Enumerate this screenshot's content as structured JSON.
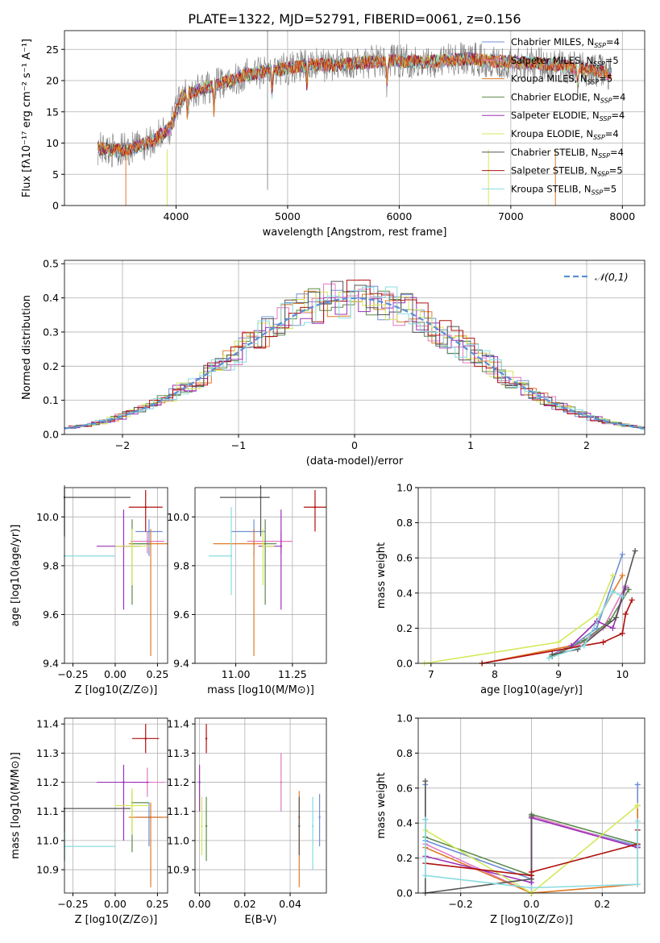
{
  "title": "PLATE=1322, MJD=52791, FIBERID=0061, z=0.156",
  "colors": {
    "chabrier_miles": "#6f8fd8",
    "salpeter_miles": "#e377c2",
    "kroupa_miles": "#e07b28",
    "chabrier_elodie": "#5a8a4a",
    "salpeter_elodie": "#9b32b8",
    "kroupa_elodie": "#d4e85a",
    "chabrier_stelib": "#555555",
    "salpeter_stelib": "#b01010",
    "kroupa_stelib": "#88dbe0",
    "gauss": "#5b8fd6"
  },
  "chart_data": [
    {
      "id": "spectrum",
      "type": "line",
      "xlabel": "wavelength [Angstrom, rest frame]",
      "ylabel": "Flux [fλ10⁻¹⁷ erg cm⁻² s⁻¹ A⁻¹]",
      "xlim": [
        3000,
        8200
      ],
      "ylim": [
        0,
        28
      ],
      "xticks": [
        4000,
        5000,
        6000,
        7000,
        8000
      ],
      "yticks": [
        0,
        5,
        10,
        15,
        20,
        25
      ],
      "continuum": {
        "x": [
          3300,
          3450,
          3600,
          3800,
          3950,
          4050,
          4200,
          4400,
          4600,
          4800,
          5000,
          5200,
          5400,
          5600,
          5800,
          6000,
          6200,
          6400,
          6600,
          6800,
          7000,
          7200,
          7400,
          7600,
          7800,
          7900
        ],
        "y": [
          9.2,
          8.8,
          9.0,
          10.5,
          12.5,
          17.5,
          18.5,
          19.5,
          20.8,
          21.5,
          22.0,
          22.5,
          22.5,
          22.8,
          23.0,
          23.2,
          23.0,
          23.2,
          23.5,
          23.2,
          23.0,
          22.8,
          22.5,
          22.0,
          21.5,
          21.0
        ]
      },
      "dips": [
        {
          "x": 4103,
          "d": 4
        },
        {
          "x": 4340,
          "d": 4
        },
        {
          "x": 4861,
          "d": 4
        },
        {
          "x": 5175,
          "d": 4
        },
        {
          "x": 5890,
          "d": 4
        },
        {
          "x": 7600,
          "d": 3
        }
      ],
      "legend": [
        {
          "label": "Chabrier MILES, N",
          "sub": "SSP",
          "suffix": "=4",
          "key": "chabrier_miles"
        },
        {
          "label": "Salpeter MILES, N",
          "sub": "SSP",
          "suffix": "=5",
          "key": "salpeter_miles"
        },
        {
          "label": "Kroupa MILES, N",
          "sub": "SSP",
          "suffix": "=5",
          "key": "kroupa_miles"
        },
        {
          "label": "Chabrier ELODIE, N",
          "sub": "SSP",
          "suffix": "=4",
          "key": "chabrier_elodie"
        },
        {
          "label": "Salpeter ELODIE, N",
          "sub": "SSP",
          "suffix": "=4",
          "key": "salpeter_elodie"
        },
        {
          "label": "Kroupa ELODIE, N",
          "sub": "SSP",
          "suffix": "=4",
          "key": "kroupa_elodie"
        },
        {
          "label": "Chabrier STELIB, N",
          "sub": "SSP",
          "suffix": "=4",
          "key": "chabrier_stelib"
        },
        {
          "label": "Salpeter STELIB, N",
          "sub": "SSP",
          "suffix": "=5",
          "key": "salpeter_stelib"
        },
        {
          "label": "Kroupa STELIB, N",
          "sub": "SSP",
          "suffix": "=5",
          "key": "kroupa_stelib"
        }
      ],
      "legend_loc": "right"
    },
    {
      "id": "residuals",
      "type": "histogram",
      "xlabel": "(data-model)/error",
      "ylabel": "Normed distribution",
      "xlim": [
        -2.5,
        2.5
      ],
      "ylim": [
        0,
        0.51
      ],
      "xticks": [
        -2,
        -1,
        0,
        1,
        2
      ],
      "yticks": [
        0.0,
        0.1,
        0.2,
        0.3,
        0.4,
        0.5
      ],
      "legend": {
        "label": "𝒩(0,1)",
        "loc": "top-right"
      }
    },
    {
      "id": "age_vs_Z",
      "type": "scatter",
      "xlabel": "Z [log10(Z/Z⊙)]",
      "ylabel": "age  [log10(age/yr)]",
      "xlim": [
        -0.3,
        0.31
      ],
      "ylim": [
        9.4,
        10.12
      ],
      "xticks": [
        -0.25,
        0.0,
        0.25
      ],
      "yticks": [
        9.4,
        9.6,
        9.8,
        10.0
      ],
      "points": [
        {
          "key": "chabrier_miles",
          "x": 0.2,
          "y": 9.94,
          "xerr": [
            0.08,
            0.08
          ],
          "yerr": [
            0.1,
            0.05
          ]
        },
        {
          "key": "salpeter_miles",
          "x": 0.19,
          "y": 9.9,
          "xerr": [
            0.1,
            0.1
          ],
          "yerr": [
            0.05,
            0.04
          ]
        },
        {
          "key": "kroupa_miles",
          "x": 0.21,
          "y": 9.89,
          "xerr": [
            0.13,
            0.1
          ],
          "yerr": [
            0.46,
            0.06
          ]
        },
        {
          "key": "chabrier_elodie",
          "x": 0.1,
          "y": 9.89,
          "xerr": [
            0.0,
            0.1
          ],
          "yerr": [
            0.25,
            0.1
          ]
        },
        {
          "key": "salpeter_elodie",
          "x": 0.05,
          "y": 9.88,
          "xerr": [
            0.16,
            0.1
          ],
          "yerr": [
            0.26,
            0.15
          ]
        },
        {
          "key": "kroupa_elodie",
          "x": 0.1,
          "y": 9.88,
          "xerr": [
            0.1,
            0.1
          ],
          "yerr": [
            0.16,
            0.07
          ]
        },
        {
          "key": "chabrier_stelib",
          "x": -0.3,
          "y": 10.08,
          "xerr": [
            0.0,
            0.39
          ],
          "yerr": [
            0.16,
            0.05
          ]
        },
        {
          "key": "salpeter_stelib",
          "x": 0.18,
          "y": 10.04,
          "xerr": [
            0.1,
            0.1
          ],
          "yerr": [
            0.1,
            0.07
          ]
        },
        {
          "key": "kroupa_stelib",
          "x": -0.3,
          "y": 9.84,
          "xerr": [
            0.0,
            0.3
          ],
          "yerr": [
            0.0,
            0.0
          ]
        }
      ]
    },
    {
      "id": "age_vs_mass",
      "type": "scatter",
      "xlabel": "mass [log10(M/M⊙)]",
      "ylabel": "",
      "xlim": [
        10.82,
        11.4
      ],
      "ylim": [
        9.4,
        10.12
      ],
      "xticks": [
        11.0,
        11.25
      ],
      "yticks": [
        9.4,
        9.6,
        9.8,
        10.0
      ],
      "points": [
        {
          "key": "chabrier_miles",
          "x": 11.08,
          "y": 9.94,
          "xerr": [
            0.1,
            0.05
          ],
          "yerr": [
            0.1,
            0.05
          ]
        },
        {
          "key": "salpeter_miles",
          "x": 11.2,
          "y": 9.9,
          "xerr": [
            0.15,
            0.05
          ],
          "yerr": [
            0.05,
            0.04
          ]
        },
        {
          "key": "kroupa_miles",
          "x": 11.08,
          "y": 9.89,
          "xerr": [
            0.18,
            0.05
          ],
          "yerr": [
            0.46,
            0.06
          ]
        },
        {
          "key": "chabrier_elodie",
          "x": 11.13,
          "y": 9.89,
          "xerr": [
            0.0,
            0.05
          ],
          "yerr": [
            0.25,
            0.1
          ]
        },
        {
          "key": "salpeter_elodie",
          "x": 11.2,
          "y": 9.88,
          "xerr": [
            0.1,
            0.0
          ],
          "yerr": [
            0.26,
            0.15
          ]
        },
        {
          "key": "kroupa_elodie",
          "x": 11.12,
          "y": 9.88,
          "xerr": [
            0.0,
            0.05
          ],
          "yerr": [
            0.16,
            0.07
          ]
        },
        {
          "key": "chabrier_stelib",
          "x": 11.11,
          "y": 10.08,
          "xerr": [
            0.18,
            0.04
          ],
          "yerr": [
            0.16,
            0.05
          ]
        },
        {
          "key": "salpeter_stelib",
          "x": 11.35,
          "y": 10.04,
          "xerr": [
            0.05,
            0.05
          ],
          "yerr": [
            0.1,
            0.07
          ]
        },
        {
          "key": "kroupa_stelib",
          "x": 10.98,
          "y": 9.84,
          "xerr": [
            0.1,
            0.0
          ],
          "yerr": [
            0.16,
            0.2
          ]
        }
      ]
    },
    {
      "id": "weight_vs_age",
      "type": "line",
      "xlabel": "age  [log10(age/yr)]",
      "ylabel": "mass weight",
      "xlim": [
        6.8,
        10.35
      ],
      "ylim": [
        0,
        1
      ],
      "xticks": [
        7,
        8,
        9,
        10
      ],
      "yticks": [
        0.0,
        0.2,
        0.4,
        0.6,
        0.8,
        1.0
      ],
      "series": [
        {
          "key": "chabrier_miles",
          "x": [
            8.9,
            9.3,
            9.6,
            10.0
          ],
          "y": [
            0.05,
            0.12,
            0.2,
            0.62
          ]
        },
        {
          "key": "salpeter_miles",
          "x": [
            8.9,
            9.3,
            9.7,
            10.05
          ],
          "y": [
            0.05,
            0.1,
            0.2,
            0.44
          ]
        },
        {
          "key": "kroupa_miles",
          "x": [
            7.8,
            9.2,
            9.6,
            10.0
          ],
          "y": [
            0.0,
            0.1,
            0.24,
            0.5
          ]
        },
        {
          "key": "chabrier_elodie",
          "x": [
            8.9,
            9.4,
            9.8,
            10.1
          ],
          "y": [
            0.04,
            0.13,
            0.24,
            0.42
          ]
        },
        {
          "key": "salpeter_elodie",
          "x": [
            9.2,
            9.6,
            9.85,
            10.05
          ],
          "y": [
            0.1,
            0.24,
            0.2,
            0.43
          ]
        },
        {
          "key": "kroupa_elodie",
          "x": [
            6.9,
            9.0,
            9.6,
            9.85
          ],
          "y": [
            0.0,
            0.12,
            0.28,
            0.5
          ]
        },
        {
          "key": "chabrier_stelib",
          "x": [
            8.9,
            9.3,
            9.9,
            10.2
          ],
          "y": [
            0.05,
            0.08,
            0.26,
            0.64
          ]
        },
        {
          "key": "salpeter_stelib",
          "x": [
            7.8,
            9.7,
            10.0,
            10.05,
            10.15
          ],
          "y": [
            0.0,
            0.12,
            0.17,
            0.28,
            0.36
          ]
        },
        {
          "key": "kroupa_stelib",
          "x": [
            8.85,
            9.4,
            9.85,
            10.0
          ],
          "y": [
            0.03,
            0.1,
            0.41,
            0.38
          ]
        }
      ]
    },
    {
      "id": "mass_vs_Z",
      "type": "scatter",
      "xlabel": "Z [log10(Z/Z⊙)]",
      "ylabel": "mass [log10(M/M⊙)]",
      "xlim": [
        -0.3,
        0.31
      ],
      "ylim": [
        10.82,
        11.42
      ],
      "xticks": [
        -0.25,
        0.0,
        0.25
      ],
      "yticks": [
        10.9,
        11.0,
        11.1,
        11.2,
        11.3,
        11.4
      ],
      "points": [
        {
          "key": "chabrier_miles",
          "x": 0.2,
          "y": 11.08,
          "xerr": [
            0.08,
            0.08
          ],
          "yerr": [
            0.1,
            0.05
          ]
        },
        {
          "key": "salpeter_miles",
          "x": 0.19,
          "y": 11.2,
          "xerr": [
            0.1,
            0.1
          ],
          "yerr": [
            0.05,
            0.05
          ]
        },
        {
          "key": "kroupa_miles",
          "x": 0.21,
          "y": 11.08,
          "xerr": [
            0.13,
            0.1
          ],
          "yerr": [
            0.24,
            0.05
          ]
        },
        {
          "key": "chabrier_elodie",
          "x": 0.1,
          "y": 11.13,
          "xerr": [
            0.0,
            0.1
          ],
          "yerr": [
            0.17,
            0.04
          ]
        },
        {
          "key": "salpeter_elodie",
          "x": 0.05,
          "y": 11.2,
          "xerr": [
            0.16,
            0.15
          ],
          "yerr": [
            0.2,
            0.06
          ]
        },
        {
          "key": "kroupa_elodie",
          "x": 0.1,
          "y": 11.12,
          "xerr": [
            0.1,
            0.1
          ],
          "yerr": [
            0.1,
            0.06
          ]
        },
        {
          "key": "chabrier_stelib",
          "x": -0.3,
          "y": 11.11,
          "xerr": [
            0.0,
            0.39
          ],
          "yerr": [
            0.18,
            0.0
          ]
        },
        {
          "key": "salpeter_stelib",
          "x": 0.18,
          "y": 11.35,
          "xerr": [
            0.08,
            0.08
          ],
          "yerr": [
            0.05,
            0.05
          ]
        },
        {
          "key": "kroupa_stelib",
          "x": -0.3,
          "y": 10.98,
          "xerr": [
            0.0,
            0.3
          ],
          "yerr": [
            0.05,
            0.05
          ]
        }
      ]
    },
    {
      "id": "mass_vs_ebv",
      "type": "scatter",
      "xlabel": "E(B-V)",
      "ylabel": "",
      "xlim": [
        -0.002,
        0.056
      ],
      "ylim": [
        10.82,
        11.42
      ],
      "xticks": [
        0.0,
        0.02,
        0.04
      ],
      "yticks": [
        10.9,
        11.0,
        11.1,
        11.2,
        11.3,
        11.4
      ],
      "points": [
        {
          "key": "chabrier_miles",
          "x": 0.053,
          "y": 11.08,
          "xerr": [
            0,
            0
          ],
          "yerr": [
            0.1,
            0.08
          ]
        },
        {
          "key": "salpeter_miles",
          "x": 0.036,
          "y": 11.2,
          "xerr": [
            0,
            0
          ],
          "yerr": [
            0.1,
            0.1
          ]
        },
        {
          "key": "kroupa_miles",
          "x": 0.044,
          "y": 11.08,
          "xerr": [
            0,
            0
          ],
          "yerr": [
            0.24,
            0.09
          ]
        },
        {
          "key": "chabrier_elodie",
          "x": 0.003,
          "y": 11.05,
          "xerr": [
            0,
            0
          ],
          "yerr": [
            0.12,
            0.1
          ]
        },
        {
          "key": "salpeter_elodie",
          "x": 0.0,
          "y": 11.2,
          "xerr": [
            0,
            0
          ],
          "yerr": [
            0.1,
            0.06
          ]
        },
        {
          "key": "kroupa_elodie",
          "x": 0.001,
          "y": 11.05,
          "xerr": [
            0,
            0
          ],
          "yerr": [
            0.1,
            0.1
          ]
        },
        {
          "key": "chabrier_stelib",
          "x": 0.044,
          "y": 11.05,
          "xerr": [
            0,
            0
          ],
          "yerr": [
            0.1,
            0.1
          ]
        },
        {
          "key": "salpeter_stelib",
          "x": 0.003,
          "y": 11.35,
          "xerr": [
            0,
            0
          ],
          "yerr": [
            0.05,
            0.05
          ]
        },
        {
          "key": "kroupa_stelib",
          "x": 0.05,
          "y": 11.05,
          "xerr": [
            0,
            0
          ],
          "yerr": [
            0.15,
            0.1
          ]
        }
      ]
    },
    {
      "id": "weight_vs_Z",
      "type": "line",
      "xlabel": "Z [log10(Z/Z⊙)]",
      "ylabel": "mass weight",
      "xlim": [
        -0.32,
        0.32
      ],
      "ylim": [
        0,
        1
      ],
      "xticks": [
        -0.2,
        0.0,
        0.2
      ],
      "yticks": [
        0.0,
        0.2,
        0.4,
        0.6,
        0.8,
        1.0
      ],
      "series": [
        {
          "key": "chabrier_miles",
          "x": [
            -0.3,
            -0.3,
            0.0,
            0.0,
            0.3,
            0.3
          ],
          "y": [
            0.62,
            0.3,
            0.08,
            0.43,
            0.27,
            0.62
          ]
        },
        {
          "key": "salpeter_miles",
          "x": [
            -0.3,
            0.0,
            0.0,
            0.3
          ],
          "y": [
            0.28,
            0.0,
            0.44,
            0.26
          ]
        },
        {
          "key": "kroupa_miles",
          "x": [
            -0.3,
            0.0,
            0.3,
            0.3
          ],
          "y": [
            0.26,
            0.0,
            0.05,
            0.5
          ]
        },
        {
          "key": "chabrier_elodie",
          "x": [
            -0.3,
            -0.3,
            0.0,
            0.0,
            0.3
          ],
          "y": [
            0.42,
            0.32,
            0.1,
            0.45,
            0.28
          ]
        },
        {
          "key": "salpeter_elodie",
          "x": [
            -0.3,
            0.0,
            0.0,
            0.3
          ],
          "y": [
            0.21,
            0.06,
            0.43,
            0.26
          ]
        },
        {
          "key": "kroupa_elodie",
          "x": [
            -0.3,
            0.0,
            0.3
          ],
          "y": [
            0.36,
            0.0,
            0.5
          ]
        },
        {
          "key": "chabrier_stelib",
          "x": [
            -0.3,
            -0.3,
            0.0,
            0.0
          ],
          "y": [
            0.64,
            0.0,
            0.08,
            0.44
          ]
        },
        {
          "key": "salpeter_stelib",
          "x": [
            -0.3,
            0.0,
            0.0,
            0.3,
            0.3
          ],
          "y": [
            0.17,
            0.1,
            0.12,
            0.28,
            0.36
          ]
        },
        {
          "key": "kroupa_stelib",
          "x": [
            -0.3,
            -0.3,
            0.0,
            0.3,
            0.3
          ],
          "y": [
            0.42,
            0.1,
            0.03,
            0.05,
            0.41
          ]
        }
      ]
    }
  ]
}
